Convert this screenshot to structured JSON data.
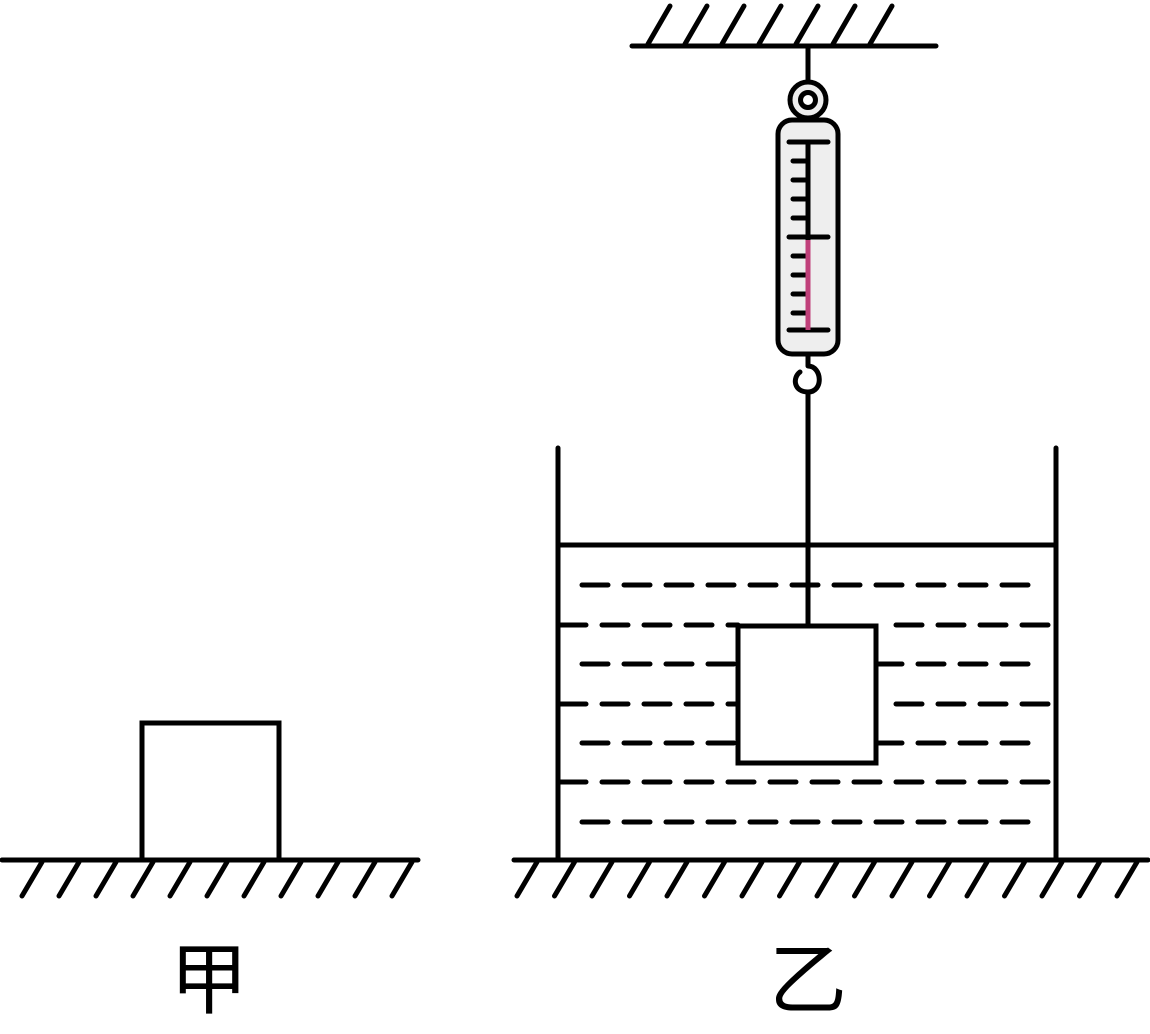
{
  "figure_left": {
    "label": "甲"
  },
  "figure_right": {
    "label": "乙"
  },
  "colors": {
    "stroke": "#000000",
    "spring_indicator": "#c0407a",
    "scale_body": "#eeeeee"
  }
}
